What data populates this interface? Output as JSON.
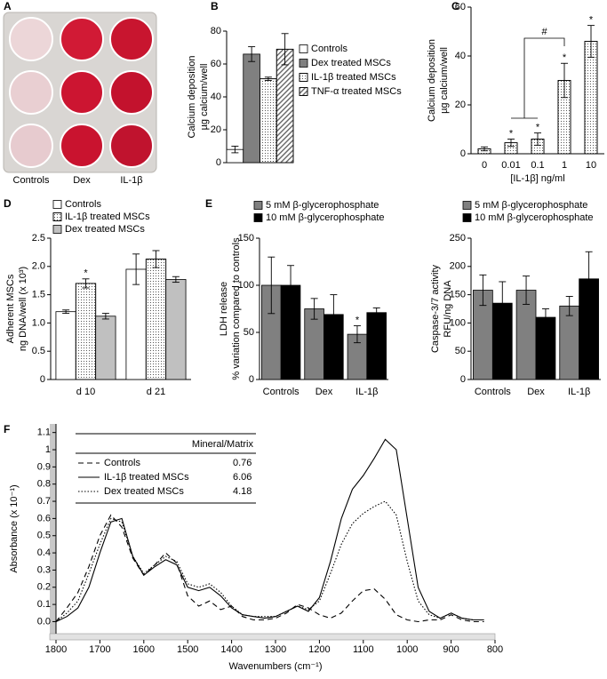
{
  "panel_a": {
    "letter": "A",
    "labels": [
      "Controls",
      "Dex",
      "IL-1β"
    ]
  },
  "chart_data": [
    {
      "type": "bar",
      "panel": "B",
      "y_label": [
        "Calcium deposition",
        "µg calcium/well"
      ],
      "categories": [
        null
      ],
      "ylim": [
        0,
        80
      ],
      "yticks": [
        0,
        20,
        40,
        60,
        80
      ],
      "series": [
        {
          "name": "Controls",
          "color": "#ffffff",
          "pattern": "none",
          "values": [
            8
          ],
          "errors": [
            2
          ]
        },
        {
          "name": "Dex treated MSCs",
          "color": "#808080",
          "pattern": "none",
          "values": [
            66
          ],
          "errors": [
            4.5
          ]
        },
        {
          "name": "IL-1β treated MSCs",
          "color": "#ffffff",
          "pattern": "dots",
          "values": [
            51
          ],
          "errors": [
            1
          ]
        },
        {
          "name": "TNF-α treated MSCs",
          "color": "#ffffff",
          "pattern": "hatch",
          "values": [
            69
          ],
          "errors": [
            9.5
          ]
        }
      ]
    },
    {
      "type": "bar",
      "panel": "C",
      "y_label": [
        "Calcium deposition",
        "µg calcium/well"
      ],
      "x_label": "[IL-1β] ng/ml",
      "categories": [
        "0",
        "0.01",
        "0.1",
        "1",
        "10"
      ],
      "ylim": [
        0,
        60
      ],
      "yticks": [
        0,
        20,
        40,
        60
      ],
      "bracket_label": "#",
      "series": [
        {
          "color": "#ffffff",
          "pattern": "dots",
          "values": [
            2,
            4.5,
            6,
            30,
            46
          ],
          "errors": [
            0.8,
            1.5,
            2.5,
            7,
            6.5
          ],
          "significance": [
            null,
            "*",
            "*",
            "*",
            "*"
          ]
        }
      ]
    },
    {
      "type": "bar",
      "panel": "D",
      "y_label": [
        "Adherent MSCs",
        "ng DNA/well (x 10³)"
      ],
      "categories": [
        "d 10",
        "d 21"
      ],
      "ylim": [
        0,
        2.5
      ],
      "yticks": [
        0,
        0.5,
        {
          "value": 1,
          "label": "1.0"
        },
        1.5,
        {
          "value": 2,
          "label": "2.0"
        },
        2.5
      ],
      "series": [
        {
          "name": "Controls",
          "color": "#ffffff",
          "pattern": "none",
          "values": [
            1.2,
            1.95
          ],
          "errors": [
            0.03,
            0.27
          ]
        },
        {
          "name": "IL-1β treated MSCs",
          "color": "#ffffff",
          "pattern": "dots",
          "values": [
            1.7,
            2.13
          ],
          "errors": [
            0.08,
            0.15
          ],
          "significance": [
            "*",
            null
          ]
        },
        {
          "name": "Dex treated MSCs",
          "color": "#c0c0c0",
          "pattern": "none",
          "values": [
            1.12,
            1.77
          ],
          "errors": [
            0.05,
            0.05
          ]
        }
      ]
    },
    {
      "type": "bar",
      "panel": "E",
      "y_label": [
        "LDH release",
        "% variation compared to controls"
      ],
      "categories": [
        "Controls",
        "Dex",
        "IL-1β"
      ],
      "ylim": [
        0,
        150
      ],
      "yticks": [
        0,
        50,
        100,
        150
      ],
      "series": [
        {
          "name": "5 mM β-glycerophosphate",
          "color": "#808080",
          "pattern": "none",
          "values": [
            100,
            75,
            48
          ],
          "errors": [
            30,
            11,
            9
          ],
          "significance": [
            null,
            null,
            "*"
          ]
        },
        {
          "name": "10 mM β-glycerophosphate",
          "color": "#000000",
          "pattern": "none",
          "values": [
            100,
            69,
            71
          ],
          "errors": [
            21,
            21,
            5
          ]
        }
      ]
    },
    {
      "type": "bar",
      "y_label": [
        "Caspase-3/7 activity",
        "RFU/ng DNA"
      ],
      "categories": [
        "Controls",
        "Dex",
        "IL-1β"
      ],
      "ylim": [
        0,
        250
      ],
      "yticks": [
        0,
        50,
        100,
        150,
        200,
        250
      ],
      "series": [
        {
          "name": "5 mM β-glycerophosphate",
          "color": "#808080",
          "pattern": "none",
          "values": [
            158,
            158,
            130
          ],
          "errors": [
            27,
            25,
            17
          ]
        },
        {
          "name": "10 mM β-glycerophosphate",
          "color": "#000000",
          "pattern": "none",
          "values": [
            135,
            110,
            178
          ],
          "errors": [
            38,
            15,
            48
          ]
        }
      ]
    },
    {
      "type": "line",
      "panel": "F",
      "x_label": "Wavenumbers (cm⁻¹)",
      "y_label": [
        "Absorbance (x 10⁻¹)"
      ],
      "table_header": "Mineral/Matrix",
      "xlim": [
        1800,
        800
      ],
      "xticks": [
        1800,
        1700,
        1600,
        1500,
        1400,
        1300,
        1200,
        1100,
        1000,
        900,
        800
      ],
      "ylim": [
        -0.07,
        1.15
      ],
      "yticks": [
        {
          "value": 0,
          "label": "0.0"
        },
        0.1,
        0.2,
        0.3,
        0.4,
        0.5,
        0.6,
        0.7,
        0.8,
        0.9,
        1,
        1.1
      ],
      "x": [
        1800,
        1775,
        1750,
        1725,
        1700,
        1675,
        1650,
        1625,
        1600,
        1575,
        1550,
        1525,
        1500,
        1475,
        1450,
        1425,
        1400,
        1375,
        1350,
        1325,
        1300,
        1275,
        1250,
        1225,
        1200,
        1175,
        1150,
        1125,
        1100,
        1075,
        1050,
        1025,
        1000,
        975,
        950,
        925,
        900,
        875,
        850,
        825
      ],
      "series": [
        {
          "name": "Controls",
          "ratio": 0.76,
          "dash": "dashed",
          "color": "#000000",
          "values": [
            0.0,
            0.08,
            0.17,
            0.32,
            0.5,
            0.62,
            0.55,
            0.37,
            0.27,
            0.33,
            0.4,
            0.34,
            0.15,
            0.09,
            0.12,
            0.07,
            0.09,
            0.03,
            0.01,
            0.01,
            0.02,
            0.05,
            0.1,
            0.08,
            0.04,
            0.02,
            0.05,
            0.12,
            0.18,
            0.19,
            0.13,
            0.04,
            0.01,
            0.0,
            0.01,
            0.01,
            0.04,
            0.01,
            0.0,
            0.0
          ]
        },
        {
          "name": "IL-1β treated MSCs",
          "ratio": 6.06,
          "dash": "solid",
          "color": "#000000",
          "values": [
            0.0,
            0.03,
            0.08,
            0.2,
            0.4,
            0.58,
            0.6,
            0.38,
            0.27,
            0.32,
            0.36,
            0.33,
            0.2,
            0.18,
            0.2,
            0.15,
            0.08,
            0.04,
            0.03,
            0.02,
            0.03,
            0.06,
            0.09,
            0.06,
            0.14,
            0.35,
            0.6,
            0.77,
            0.85,
            0.95,
            1.06,
            1.0,
            0.6,
            0.2,
            0.06,
            0.02,
            0.05,
            0.02,
            0.01,
            0.01
          ]
        },
        {
          "name": "Dex treated MSCs",
          "ratio": 4.18,
          "dash": "dotted",
          "color": "#000000",
          "values": [
            0.0,
            0.05,
            0.12,
            0.28,
            0.45,
            0.6,
            0.58,
            0.38,
            0.28,
            0.33,
            0.38,
            0.35,
            0.22,
            0.2,
            0.22,
            0.17,
            0.09,
            0.04,
            0.03,
            0.03,
            0.03,
            0.06,
            0.09,
            0.07,
            0.12,
            0.28,
            0.45,
            0.57,
            0.63,
            0.67,
            0.7,
            0.62,
            0.35,
            0.12,
            0.04,
            0.02,
            0.05,
            0.02,
            0.01,
            0.01
          ]
        }
      ]
    }
  ]
}
